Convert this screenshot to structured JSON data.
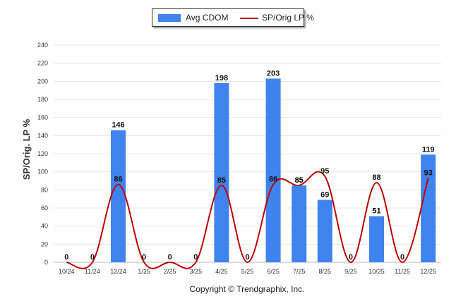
{
  "legend": {
    "bar_label": "Avg CDOM",
    "line_label": "SP/Orig LP %"
  },
  "footer": {
    "copyright": "Copyright © Trendgraphix, Inc."
  },
  "chart_data": {
    "type": "bar",
    "ylabel": "SP/Orig. LP %",
    "ylim": [
      0,
      240
    ],
    "yticks": [
      0,
      20,
      40,
      60,
      80,
      100,
      120,
      140,
      160,
      180,
      200,
      220,
      240
    ],
    "grid": true,
    "legend_position": "top-center",
    "categories": [
      "10/24",
      "11/24",
      "12/24",
      "1/25",
      "2/25",
      "3/25",
      "4/25",
      "5/25",
      "6/25",
      "7/25",
      "8/25",
      "9/25",
      "10/25",
      "11/25",
      "12/25"
    ],
    "series": [
      {
        "name": "Avg CDOM",
        "type": "bar",
        "color": "#3f83ef",
        "values": [
          0,
          0,
          146,
          0,
          0,
          0,
          198,
          0,
          203,
          85,
          69,
          0,
          51,
          0,
          119
        ]
      },
      {
        "name": "SP/Orig LP %",
        "type": "line",
        "color": "#c00000",
        "values": [
          0,
          0,
          86,
          0,
          0,
          0,
          85,
          0,
          86,
          85,
          95,
          0,
          88,
          0,
          93
        ]
      }
    ]
  }
}
